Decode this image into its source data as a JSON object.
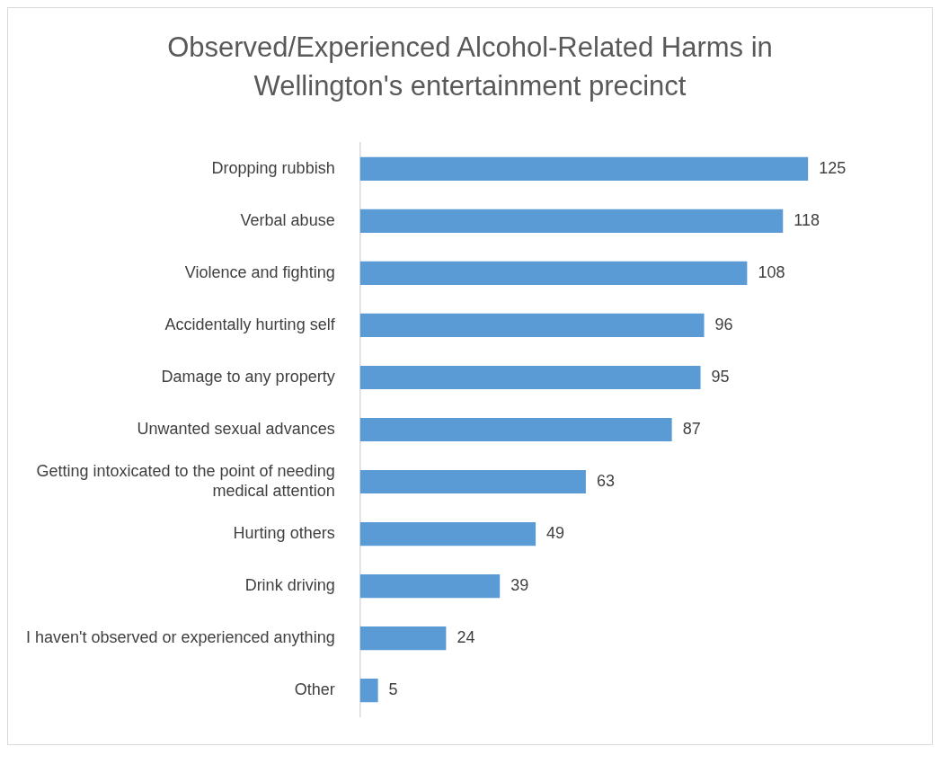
{
  "chart_data": {
    "type": "bar",
    "orientation": "horizontal",
    "title": "Observed/Experienced Alcohol-Related Harms in Wellington's entertainment precinct",
    "categories": [
      "Dropping rubbish",
      "Verbal abuse",
      "Violence and fighting",
      "Accidentally hurting self",
      "Damage to any property",
      "Unwanted sexual advances",
      "Getting intoxicated to the point of needing medical attention",
      "Hurting others",
      "Drink driving",
      "I haven't observed or experienced anything",
      "Other"
    ],
    "values": [
      125,
      118,
      108,
      96,
      95,
      87,
      63,
      49,
      39,
      24,
      5
    ],
    "color": "#5b9bd5",
    "data_labels": true,
    "grid": false,
    "legend": false
  }
}
